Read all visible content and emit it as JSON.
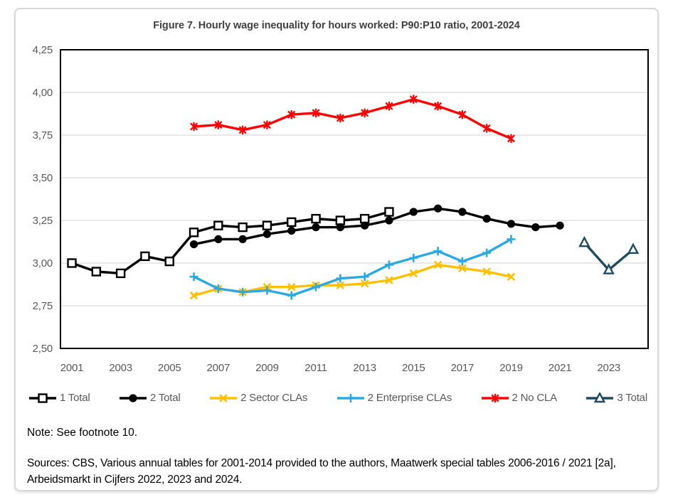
{
  "figure": {
    "title": "Figure 7. Hourly wage inequality for hours worked: P90:P10 ratio, 2001-2024",
    "note": "Note: See footnote 10.",
    "sources": "Sources: CBS, Various annual tables for 2001-2014 provided to the authors, Maatwerk special tables 2006-2016 / 2021 [2a], Arbeidsmarkt in Cijfers 2022, 2023 and 2024."
  },
  "colors": {
    "title_text": "#404040",
    "axis_text": "#595959",
    "legend_text": "#595959",
    "gridline": "#D9D9D9",
    "plot_frame": "#000000",
    "figure_border": "#D8D8D8"
  },
  "chart_data": {
    "type": "line",
    "title": "Figure 7. Hourly wage inequality for hours worked: P90:P10 ratio, 2001-2024",
    "xlabel": "",
    "ylabel": "",
    "xlim": [
      2001,
      2024
    ],
    "ylim": [
      2.5,
      4.25
    ],
    "y_tick_step": 0.25,
    "y_tick_labels": [
      "4,25",
      "4,00",
      "3,75",
      "3,50",
      "3,25",
      "3,00",
      "2,75",
      "2,50"
    ],
    "x_tick_labels": [
      "2001",
      "2003",
      "2005",
      "2007",
      "2009",
      "2011",
      "2013",
      "2015",
      "2017",
      "2019",
      "2021",
      "2023"
    ],
    "decimal_separator": ",",
    "grid": "horizontal",
    "legend_position": "bottom",
    "series": [
      {
        "name": "1 Total",
        "color": "#000000",
        "marker": "square-open",
        "years": [
          2001,
          2002,
          2003,
          2004,
          2005,
          2006,
          2007,
          2008,
          2009,
          2010,
          2011,
          2012,
          2013,
          2014
        ],
        "values": [
          3.0,
          2.95,
          2.94,
          3.04,
          3.01,
          3.18,
          3.22,
          3.21,
          3.22,
          3.24,
          3.26,
          3.25,
          3.26,
          3.3
        ]
      },
      {
        "name": "2 Total",
        "color": "#000000",
        "marker": "circle-filled",
        "years": [
          2006,
          2007,
          2008,
          2009,
          2010,
          2011,
          2012,
          2013,
          2014,
          2015,
          2016,
          2017,
          2018,
          2019,
          2020,
          2021
        ],
        "values": [
          3.11,
          3.14,
          3.14,
          3.17,
          3.19,
          3.21,
          3.21,
          3.22,
          3.25,
          3.3,
          3.32,
          3.3,
          3.26,
          3.23,
          3.21,
          3.22
        ]
      },
      {
        "name": "2 Sector CLAs",
        "color": "#FFC000",
        "marker": "x",
        "years": [
          2006,
          2007,
          2008,
          2009,
          2010,
          2011,
          2012,
          2013,
          2014,
          2015,
          2016,
          2017,
          2018,
          2019
        ],
        "values": [
          2.81,
          2.85,
          2.83,
          2.86,
          2.86,
          2.87,
          2.87,
          2.88,
          2.9,
          2.94,
          2.99,
          2.97,
          2.95,
          2.92
        ]
      },
      {
        "name": "2 Enterprise CLAs",
        "color": "#2EA9DF",
        "marker": "plus",
        "years": [
          2006,
          2007,
          2008,
          2009,
          2010,
          2011,
          2012,
          2013,
          2014,
          2015,
          2016,
          2017,
          2018,
          2019
        ],
        "values": [
          2.92,
          2.85,
          2.83,
          2.84,
          2.81,
          2.86,
          2.91,
          2.92,
          2.99,
          3.03,
          3.07,
          3.01,
          3.06,
          3.14
        ]
      },
      {
        "name": "2 No CLA",
        "color": "#FF0000",
        "marker": "asterisk",
        "years": [
          2006,
          2007,
          2008,
          2009,
          2010,
          2011,
          2012,
          2013,
          2014,
          2015,
          2016,
          2017,
          2018,
          2019
        ],
        "values": [
          3.8,
          3.81,
          3.78,
          3.81,
          3.87,
          3.88,
          3.85,
          3.88,
          3.92,
          3.96,
          3.92,
          3.87,
          3.79,
          3.73
        ]
      },
      {
        "name": "3 Total",
        "color": "#1F4B60",
        "marker": "triangle-open",
        "years": [
          2022,
          2023,
          2024
        ],
        "values": [
          3.12,
          2.96,
          3.08
        ]
      }
    ]
  }
}
